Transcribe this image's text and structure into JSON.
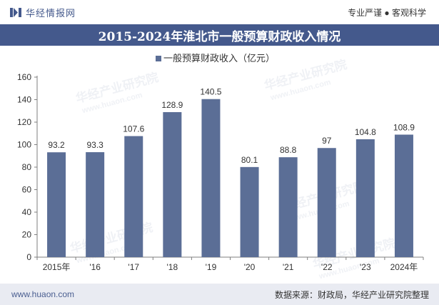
{
  "header": {
    "brand": "华经情报网",
    "tagline": "专业严谨 ● 客观科学"
  },
  "title": "2015-2024年淮北市一般预算财政收入情况",
  "chart_data": {
    "type": "bar",
    "categories": [
      "2015年",
      "'16",
      "'17",
      "'18",
      "'19",
      "'20",
      "'21",
      "'22",
      "'23",
      "2024年"
    ],
    "series": [
      {
        "name": "一般预算财政收入（亿元）",
        "values": [
          93.2,
          93.3,
          107.6,
          128.9,
          140.5,
          80.1,
          88.8,
          97,
          104.8,
          108.9
        ]
      }
    ],
    "value_labels": [
      "93.2",
      "93.3",
      "107.6",
      "128.9",
      "140.5",
      "80.1",
      "88.8",
      "97",
      "104.8",
      "108.9"
    ],
    "ylim": [
      0,
      160
    ],
    "yticks": [
      0,
      20,
      40,
      60,
      80,
      100,
      120,
      140,
      160
    ],
    "grid": false,
    "legend": "top-center",
    "bar_color": "#5b6e96"
  },
  "watermark": {
    "brand": "华经产业研究院",
    "url": "www.huaon.com"
  },
  "footer": {
    "url": "www.huaon.com",
    "source": "数据来源：财政局，华经产业研究院整理"
  }
}
